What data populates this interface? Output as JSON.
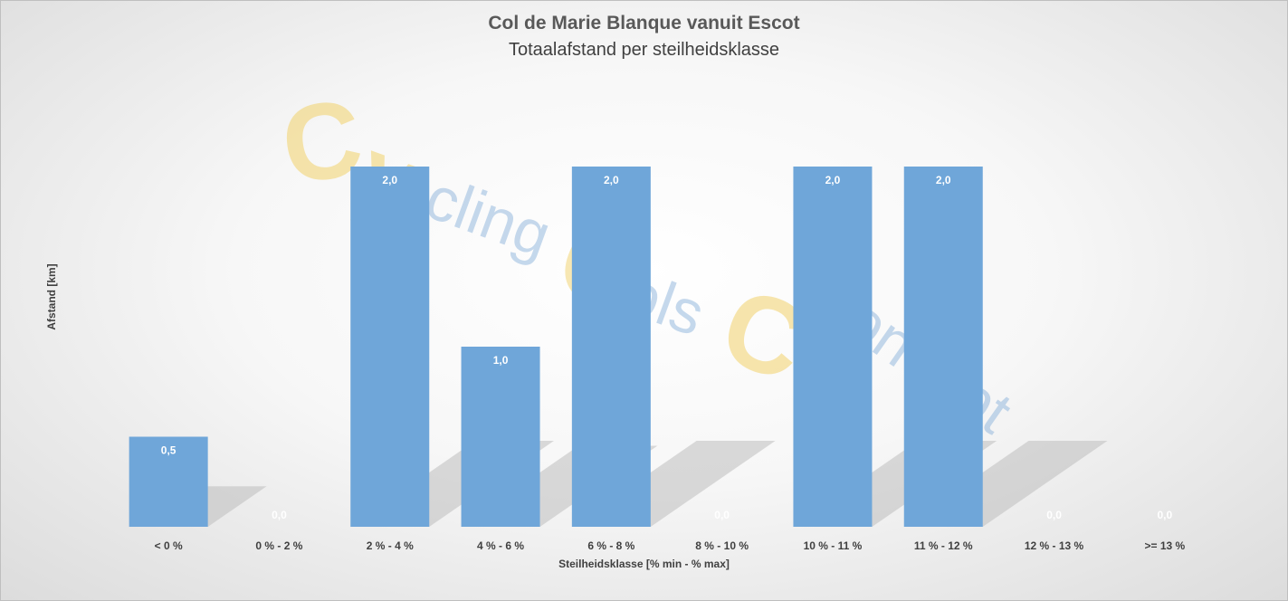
{
  "chart_data": {
    "type": "bar",
    "title": "Col de Marie Blanque vanuit Escot",
    "subtitle": "Totaalafstand per steilheidsklasse",
    "xlabel": "Steilheidsklasse [% min - % max]",
    "ylabel": "Afstand [km]",
    "categories": [
      "< 0 %",
      "0 % - 2 %",
      "2 % - 4 %",
      "4 % - 6 %",
      "6 % - 8 %",
      "8 % - 10 %",
      "10 % - 11 %",
      "11 % - 12 %",
      "12 % - 13 %",
      ">= 13 %"
    ],
    "values": [
      0.5,
      0.0,
      2.0,
      1.0,
      2.0,
      0.0,
      2.0,
      2.0,
      0.0,
      0.0
    ],
    "data_labels": [
      "0,5",
      "0,0",
      "2,0",
      "1,0",
      "2,0",
      "0,0",
      "2,0",
      "2,0",
      "0,0",
      "0,0"
    ],
    "ylim": [
      0,
      2.0
    ],
    "grid": false,
    "legend": "none",
    "colors": {
      "bar": "#6fa6d9",
      "text": "#404040",
      "watermark_yellow": "#f2d26b",
      "watermark_blue": "#8db4dc"
    }
  },
  "watermark": {
    "letters": [
      "C",
      "y",
      "cling",
      "C",
      "ols",
      "C",
      "oncept"
    ]
  }
}
